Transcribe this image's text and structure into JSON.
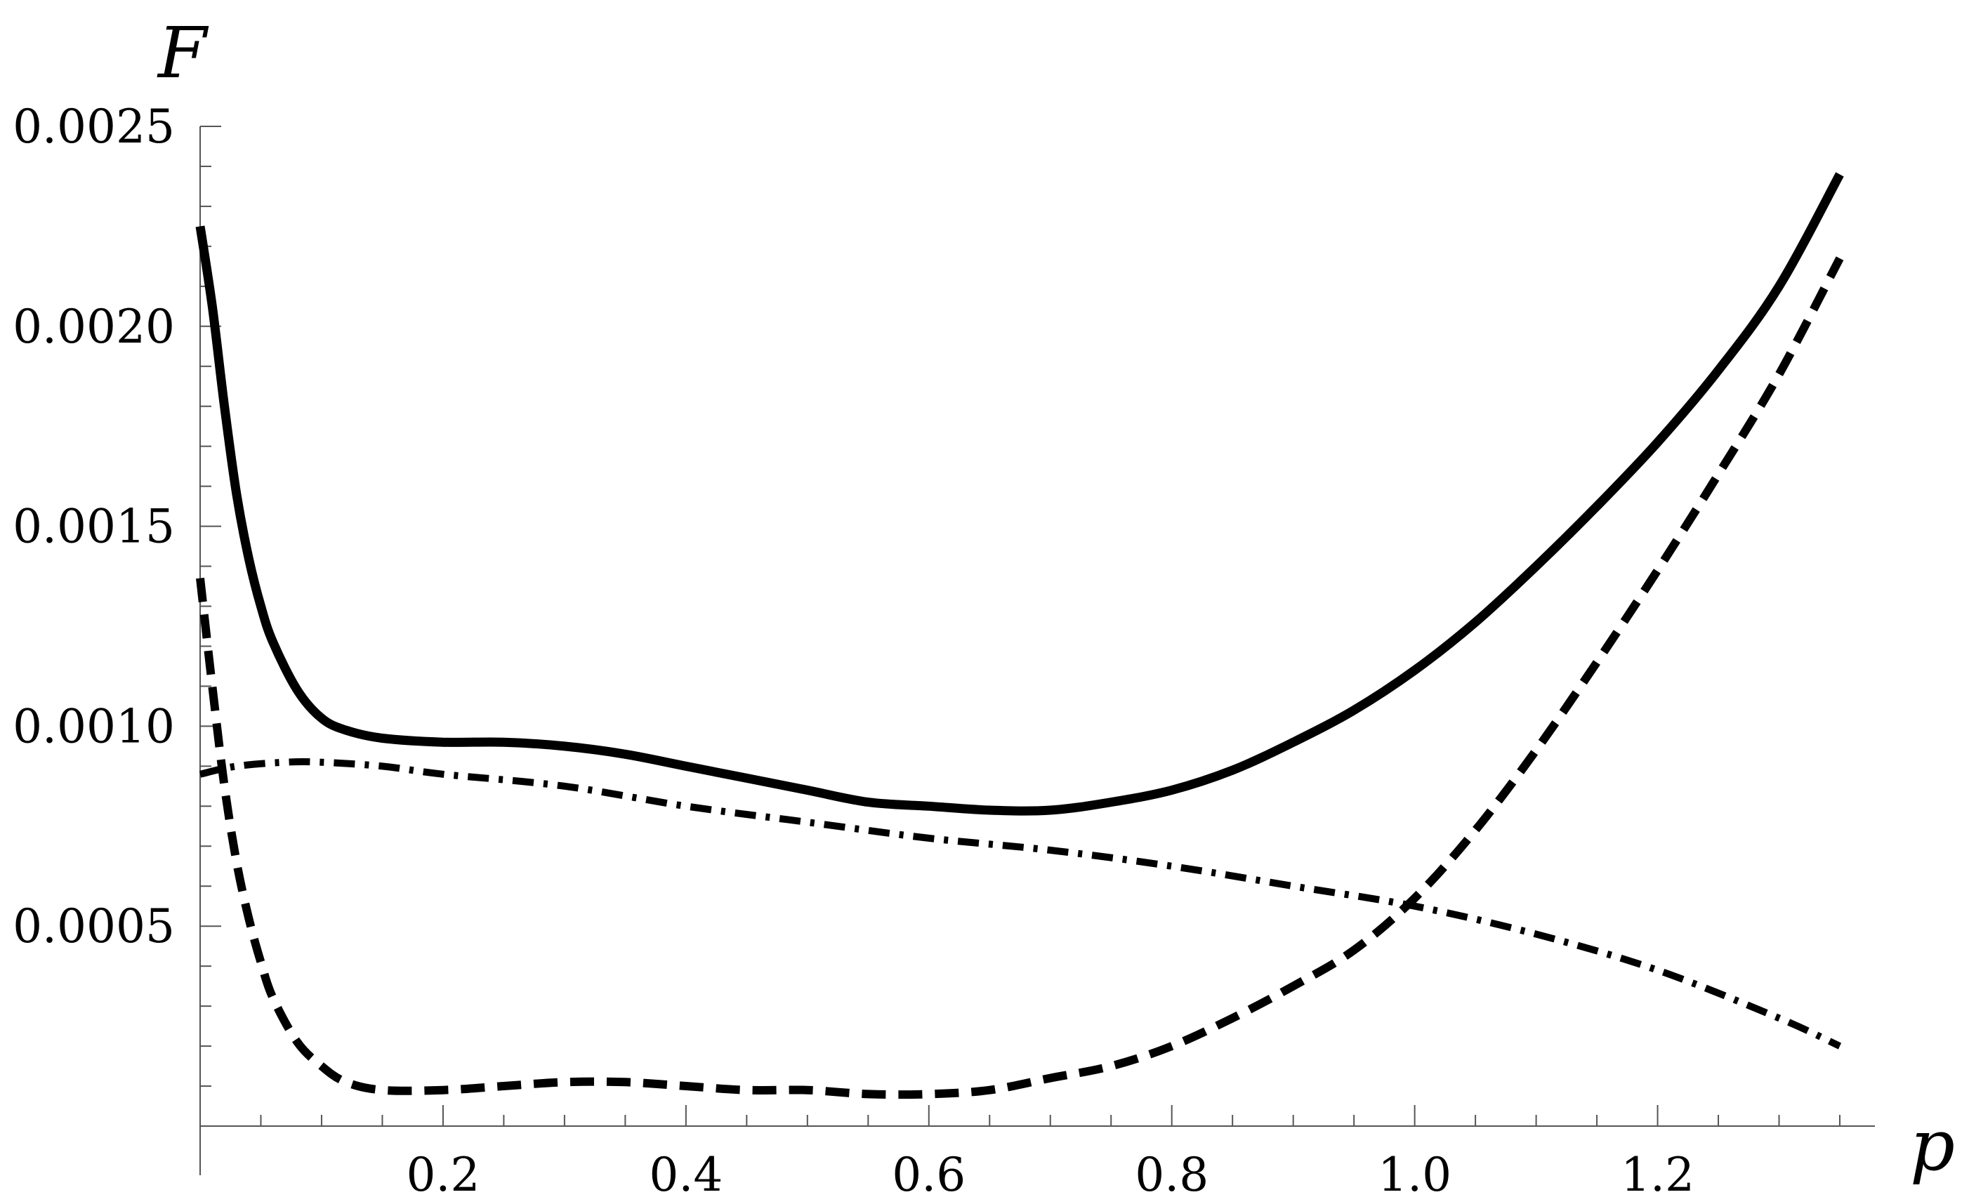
{
  "chart_data": {
    "type": "line",
    "xlabel": "p",
    "ylabel": "F",
    "xlim": [
      0,
      1.35
    ],
    "ylim": [
      0,
      0.0025
    ],
    "x_ticks": [
      {
        "value": 0.2,
        "label": "0.2"
      },
      {
        "value": 0.4,
        "label": "0.4"
      },
      {
        "value": 0.6,
        "label": "0.6"
      },
      {
        "value": 0.8,
        "label": "0.8"
      },
      {
        "value": 1.0,
        "label": "1.0"
      },
      {
        "value": 1.2,
        "label": "1.2"
      }
    ],
    "y_ticks": [
      {
        "value": 0.0005,
        "label": "0.0005"
      },
      {
        "value": 0.001,
        "label": "0.0010"
      },
      {
        "value": 0.0015,
        "label": "0.0015"
      },
      {
        "value": 0.002,
        "label": "0.0020"
      },
      {
        "value": 0.0025,
        "label": "0.0025"
      }
    ],
    "grid": false,
    "series": [
      {
        "style": "solid",
        "color": "#000000",
        "points": [
          [
            0.0,
            0.00225
          ],
          [
            0.01,
            0.00205
          ],
          [
            0.02,
            0.0018
          ],
          [
            0.03,
            0.00158
          ],
          [
            0.04,
            0.00142
          ],
          [
            0.05,
            0.0013
          ],
          [
            0.06,
            0.00121
          ],
          [
            0.08,
            0.00109
          ],
          [
            0.1,
            0.00102
          ],
          [
            0.12,
            0.00099
          ],
          [
            0.15,
            0.00097
          ],
          [
            0.2,
            0.00096
          ],
          [
            0.25,
            0.00096
          ],
          [
            0.3,
            0.00095
          ],
          [
            0.35,
            0.00093
          ],
          [
            0.4,
            0.0009
          ],
          [
            0.45,
            0.00087
          ],
          [
            0.5,
            0.00084
          ],
          [
            0.55,
            0.00081
          ],
          [
            0.6,
            0.0008
          ],
          [
            0.65,
            0.00079
          ],
          [
            0.7,
            0.00079
          ],
          [
            0.75,
            0.00081
          ],
          [
            0.8,
            0.00084
          ],
          [
            0.85,
            0.00089
          ],
          [
            0.9,
            0.00096
          ],
          [
            0.95,
            0.00104
          ],
          [
            1.0,
            0.00114
          ],
          [
            1.05,
            0.00126
          ],
          [
            1.1,
            0.0014
          ],
          [
            1.15,
            0.00155
          ],
          [
            1.2,
            0.00171
          ],
          [
            1.25,
            0.00189
          ],
          [
            1.3,
            0.0021
          ],
          [
            1.35,
            0.00238
          ]
        ]
      },
      {
        "style": "dashed",
        "color": "#000000",
        "points": [
          [
            0.0,
            0.00137
          ],
          [
            0.01,
            0.0011
          ],
          [
            0.02,
            0.00085
          ],
          [
            0.03,
            0.00066
          ],
          [
            0.04,
            0.00052
          ],
          [
            0.05,
            0.00041
          ],
          [
            0.06,
            0.00032
          ],
          [
            0.08,
            0.00021
          ],
          [
            0.1,
            0.00015
          ],
          [
            0.12,
            0.00011
          ],
          [
            0.15,
            9e-05
          ],
          [
            0.2,
            9e-05
          ],
          [
            0.25,
            0.0001
          ],
          [
            0.3,
            0.00011
          ],
          [
            0.35,
            0.00011
          ],
          [
            0.4,
            0.0001
          ],
          [
            0.45,
            9e-05
          ],
          [
            0.5,
            9e-05
          ],
          [
            0.55,
            8e-05
          ],
          [
            0.6,
            8e-05
          ],
          [
            0.65,
            9e-05
          ],
          [
            0.7,
            0.00012
          ],
          [
            0.75,
            0.00015
          ],
          [
            0.8,
            0.0002
          ],
          [
            0.85,
            0.00027
          ],
          [
            0.9,
            0.00035
          ],
          [
            0.95,
            0.00044
          ],
          [
            1.0,
            0.00057
          ],
          [
            1.05,
            0.00074
          ],
          [
            1.1,
            0.00094
          ],
          [
            1.15,
            0.00116
          ],
          [
            1.2,
            0.00139
          ],
          [
            1.25,
            0.00163
          ],
          [
            1.3,
            0.00188
          ],
          [
            1.35,
            0.00217
          ]
        ]
      },
      {
        "style": "dashdot",
        "color": "#000000",
        "points": [
          [
            0.0,
            0.00088
          ],
          [
            0.03,
            0.0009
          ],
          [
            0.07,
            0.00091
          ],
          [
            0.1,
            0.00091
          ],
          [
            0.15,
            0.0009
          ],
          [
            0.2,
            0.00088
          ],
          [
            0.3,
            0.00085
          ],
          [
            0.4,
            0.0008
          ],
          [
            0.5,
            0.00076
          ],
          [
            0.6,
            0.00072
          ],
          [
            0.7,
            0.00069
          ],
          [
            0.8,
            0.00065
          ],
          [
            0.9,
            0.0006
          ],
          [
            1.0,
            0.00055
          ],
          [
            1.1,
            0.00048
          ],
          [
            1.2,
            0.00039
          ],
          [
            1.3,
            0.00027
          ],
          [
            1.35,
            0.0002
          ]
        ]
      }
    ]
  }
}
